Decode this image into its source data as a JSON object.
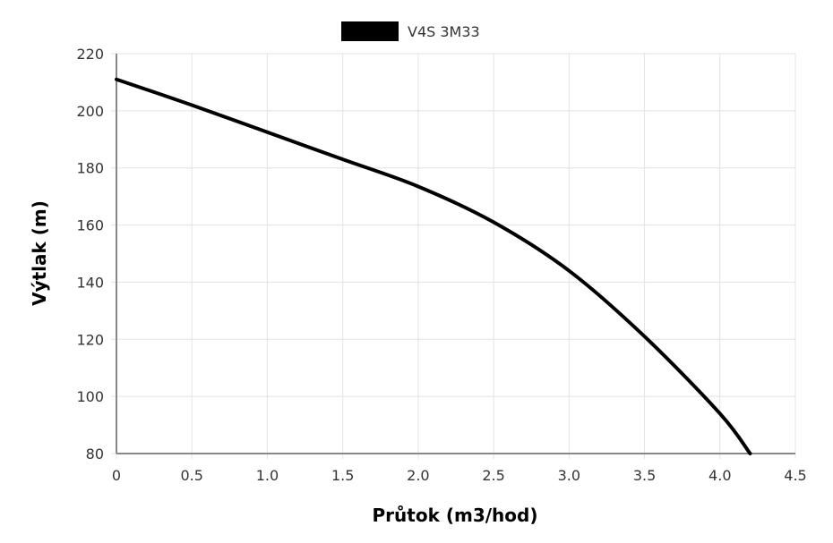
{
  "chart_data": {
    "type": "line",
    "xlabel": "Průtok (m3/hod)",
    "ylabel": "Výtlak (m)",
    "xlim": [
      0,
      4.5
    ],
    "ylim": [
      80,
      220
    ],
    "x_ticks": [
      "0",
      "0.5",
      "1.0",
      "1.5",
      "2.0",
      "2.5",
      "3.0",
      "3.5",
      "4.0",
      "4.5"
    ],
    "y_ticks": [
      "80",
      "100",
      "120",
      "140",
      "160",
      "180",
      "200",
      "220"
    ],
    "grid": true,
    "legend_position": "top-center",
    "series": [
      {
        "name": "V4S 3M33",
        "color": "#000000",
        "points": [
          [
            0,
            211
          ],
          [
            0.5,
            202
          ],
          [
            1.0,
            192.5
          ],
          [
            1.5,
            183
          ],
          [
            2.0,
            173.5
          ],
          [
            2.5,
            161
          ],
          [
            3.0,
            144
          ],
          [
            3.5,
            121
          ],
          [
            4.0,
            94
          ],
          [
            4.2,
            80
          ]
        ]
      }
    ]
  }
}
